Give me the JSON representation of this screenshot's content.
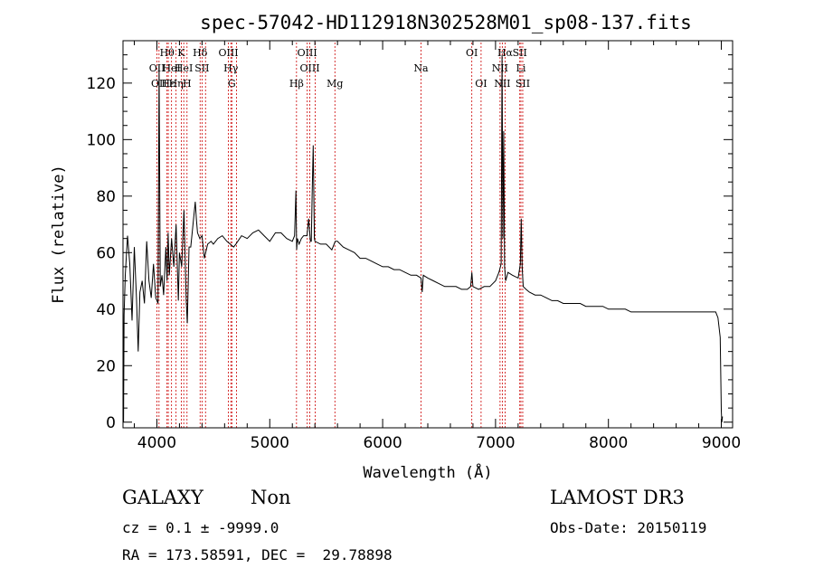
{
  "chart_data": {
    "type": "line",
    "title": "spec-57042-HD112918N302528M01_sp08-137.fits",
    "xlabel": "Wavelength (Å)",
    "ylabel": "Flux (relative)",
    "xlim": [
      3700,
      9100
    ],
    "ylim": [
      -2,
      135
    ],
    "xticks": [
      4000,
      5000,
      6000,
      7000,
      8000,
      9000
    ],
    "yticks": [
      0,
      20,
      40,
      60,
      80,
      100,
      120
    ],
    "series": [
      {
        "name": "Flux",
        "x": [
          3700,
          3705,
          3710,
          3720,
          3740,
          3760,
          3780,
          3800,
          3820,
          3835,
          3850,
          3870,
          3890,
          3910,
          3930,
          3950,
          3970,
          3990,
          4010,
          4020,
          4030,
          4045,
          4060,
          4080,
          4090,
          4100,
          4110,
          4130,
          4150,
          4170,
          4190,
          4200,
          4220,
          4240,
          4260,
          4270,
          4285,
          4300,
          4320,
          4340,
          4350,
          4360,
          4380,
          4400,
          4420,
          4450,
          4480,
          4500,
          4540,
          4580,
          4620,
          4650,
          4680,
          4700,
          4750,
          4800,
          4850,
          4900,
          4950,
          5000,
          5050,
          5100,
          5150,
          5200,
          5220,
          5232,
          5238,
          5245,
          5260,
          5280,
          5300,
          5330,
          5345,
          5360,
          5368,
          5375,
          5385,
          5395,
          5400,
          5450,
          5500,
          5550,
          5580,
          5600,
          5650,
          5700,
          5750,
          5800,
          5850,
          5900,
          5950,
          6000,
          6050,
          6100,
          6150,
          6200,
          6250,
          6300,
          6340,
          6350,
          6360,
          6400,
          6450,
          6500,
          6550,
          6600,
          6650,
          6700,
          6750,
          6780,
          6790,
          6800,
          6850,
          6900,
          6950,
          7000,
          7030,
          7050,
          7058,
          7065,
          7072,
          7080,
          7090,
          7110,
          7150,
          7200,
          7220,
          7228,
          7236,
          7245,
          7270,
          7300,
          7350,
          7400,
          7450,
          7500,
          7550,
          7600,
          7650,
          7700,
          7750,
          7800,
          7850,
          7900,
          7950,
          8000,
          8050,
          8100,
          8150,
          8200,
          8250,
          8300,
          8350,
          8400,
          8450,
          8500,
          8550,
          8600,
          8650,
          8700,
          8750,
          8800,
          8850,
          8900,
          8950,
          8970,
          8990,
          9000,
          9005,
          9010
        ],
        "y": [
          45,
          0,
          38,
          52,
          66,
          56,
          36,
          62,
          43,
          25,
          46,
          50,
          42,
          64,
          50,
          44,
          56,
          44,
          42,
          126,
          48,
          52,
          45,
          62,
          50,
          67,
          52,
          65,
          55,
          70,
          43,
          60,
          55,
          75,
          43,
          35,
          62,
          62,
          70,
          78,
          72,
          67,
          65,
          66,
          58,
          63,
          64,
          63,
          65,
          66,
          64,
          63,
          62,
          63,
          66,
          65,
          67,
          68,
          66,
          64,
          67,
          67,
          65,
          64,
          66,
          82,
          61,
          65,
          63,
          65,
          66,
          66,
          72,
          64,
          64,
          80,
          98,
          65,
          64,
          63,
          63,
          61,
          64,
          64,
          62,
          61,
          60,
          58,
          58,
          57,
          56,
          55,
          55,
          54,
          54,
          53,
          52,
          52,
          51,
          46,
          52,
          51,
          50,
          49,
          48,
          48,
          48,
          47,
          47,
          48,
          53,
          48,
          47,
          48,
          48,
          50,
          53,
          56,
          130,
          65,
          103,
          55,
          50,
          53,
          52,
          51,
          56,
          72,
          55,
          48,
          47,
          46,
          45,
          45,
          44,
          43,
          43,
          42,
          42,
          42,
          42,
          41,
          41,
          41,
          41,
          40,
          40,
          40,
          40,
          39,
          39,
          39,
          39,
          39,
          39,
          39,
          39,
          39,
          39,
          39,
          39,
          39,
          39,
          39,
          39,
          37,
          30,
          4,
          0,
          2
        ]
      }
    ],
    "emission_lines": [
      {
        "wl": 4001,
        "label": "OII",
        "row": 2
      },
      {
        "wl": 4019,
        "label": "OII",
        "row": 3
      },
      {
        "wl": 4090,
        "label": "Hθ",
        "row": 1
      },
      {
        "wl": 4101,
        "label": "Hε",
        "row": 3
      },
      {
        "wl": 4130,
        "label": "HeI",
        "row": 2
      },
      {
        "wl": 4170,
        "label": "Hη",
        "row": 3
      },
      {
        "wl": 4216,
        "label": "K",
        "row": 1
      },
      {
        "wl": 4238,
        "label": "HeI",
        "row": 2
      },
      {
        "wl": 4267,
        "label": "H",
        "row": 3
      },
      {
        "wl": 4383,
        "label": "Hδ",
        "row": 1
      },
      {
        "wl": 4400,
        "label": "SII",
        "row": 2
      },
      {
        "wl": 4431,
        "label": "",
        "row": 0
      },
      {
        "wl": 4634,
        "label": "OIII",
        "row": 1
      },
      {
        "wl": 4655,
        "label": "Hγ",
        "row": 2
      },
      {
        "wl": 4664,
        "label": "G",
        "row": 3
      },
      {
        "wl": 4705,
        "label": "",
        "row": 0
      },
      {
        "wl": 5237,
        "label": "Hβ",
        "row": 3
      },
      {
        "wl": 5332,
        "label": "OIII",
        "row": 1
      },
      {
        "wl": 5355,
        "label": "OIII",
        "row": 2
      },
      {
        "wl": 5403,
        "label": "",
        "row": 0
      },
      {
        "wl": 5577,
        "label": "Mg",
        "row": 3
      },
      {
        "wl": 6340,
        "label": "Na",
        "row": 2
      },
      {
        "wl": 6790,
        "label": "OI",
        "row": 1
      },
      {
        "wl": 6872,
        "label": "OI",
        "row": 3
      },
      {
        "wl": 7040,
        "label": "NII",
        "row": 2
      },
      {
        "wl": 7060,
        "label": "NII",
        "row": 3
      },
      {
        "wl": 7085,
        "label": "Hα",
        "row": 1
      },
      {
        "wl": 7215,
        "label": "SII",
        "row": 1
      },
      {
        "wl": 7225,
        "label": "Li",
        "row": 2
      },
      {
        "wl": 7241,
        "label": "SII",
        "row": 3
      }
    ]
  },
  "info": {
    "class_label": "GALAXY",
    "subclass_label": "Non",
    "survey": "LAMOST DR3",
    "cz_text": "cz = 0.1 ± -9999.0",
    "obs_date": "Obs-Date: 20150119",
    "coords": "RA = 173.58591, DEC =  29.78898"
  },
  "colors": {
    "line": "#000000",
    "marker": "#cc0000"
  }
}
